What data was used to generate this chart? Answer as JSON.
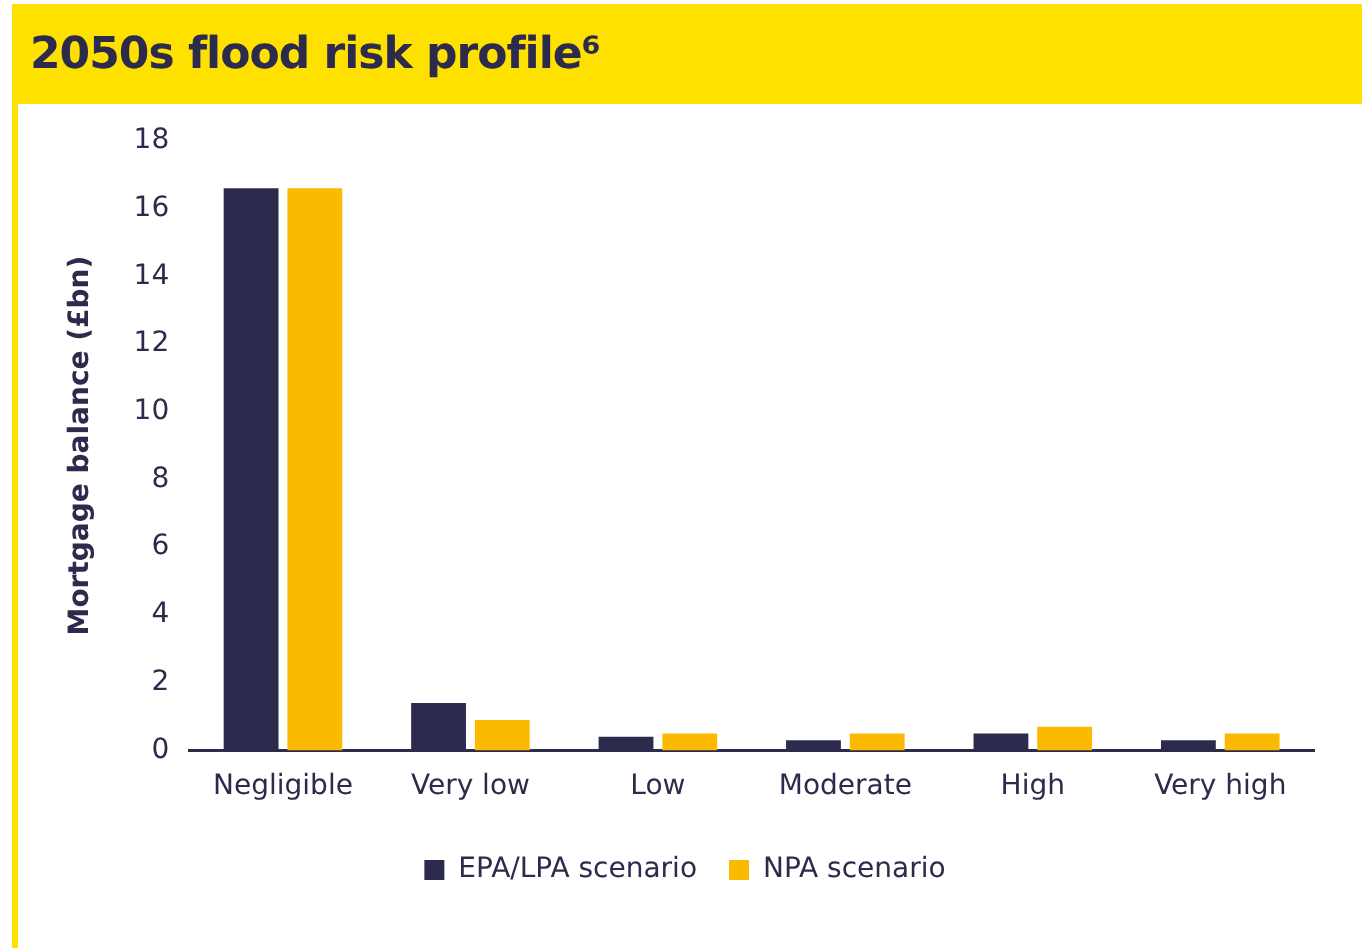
{
  "chart_data": {
    "type": "bar",
    "title": "2050s flood risk profile⁶",
    "ylabel": "Mortgage balance (£bn)",
    "categories": [
      "Negligible",
      "Very low",
      "Low",
      "Moderate",
      "High",
      "Very high"
    ],
    "series": [
      {
        "name": "EPA/LPA scenario",
        "color": "#2d2b4d",
        "values": [
          16.6,
          1.4,
          0.4,
          0.3,
          0.5,
          0.3
        ]
      },
      {
        "name": "NPA scenario",
        "color": "#fbb900",
        "values": [
          16.6,
          0.9,
          0.5,
          0.5,
          0.7,
          0.5
        ]
      }
    ],
    "ylim": [
      0,
      18
    ],
    "yticks": [
      0,
      2,
      4,
      6,
      8,
      10,
      12,
      14,
      16,
      18
    ],
    "grid": false,
    "legend": "bottom"
  }
}
